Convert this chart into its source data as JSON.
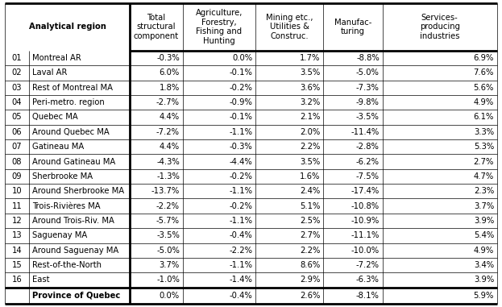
{
  "rows": [
    [
      "01",
      "Montreal AR",
      "-0.3%",
      "0.0%",
      "1.7%",
      "-8.8%",
      "6.9%"
    ],
    [
      "02",
      "Laval AR",
      "6.0%",
      "-0.1%",
      "3.5%",
      "-5.0%",
      "7.6%"
    ],
    [
      "03",
      "Rest of Montreal MA",
      "1.8%",
      "-0.2%",
      "3.6%",
      "-7.3%",
      "5.6%"
    ],
    [
      "04",
      "Peri-metro. region",
      "-2.7%",
      "-0.9%",
      "3.2%",
      "-9.8%",
      "4.9%"
    ],
    [
      "05",
      "Quebec MA",
      "4.4%",
      "-0.1%",
      "2.1%",
      "-3.5%",
      "6.1%"
    ],
    [
      "06",
      "Around Quebec MA",
      "-7.2%",
      "-1.1%",
      "2.0%",
      "-11.4%",
      "3.3%"
    ],
    [
      "07",
      "Gatineau MA",
      "4.4%",
      "-0.3%",
      "2.2%",
      "-2.8%",
      "5.3%"
    ],
    [
      "08",
      "Around Gatineau MA",
      "-4.3%",
      "-4.4%",
      "3.5%",
      "-6.2%",
      "2.7%"
    ],
    [
      "09",
      "Sherbrooke MA",
      "-1.3%",
      "-0.2%",
      "1.6%",
      "-7.5%",
      "4.7%"
    ],
    [
      "10",
      "Around Sherbrooke MA",
      "-13.7%",
      "-1.1%",
      "2.4%",
      "-17.4%",
      "2.3%"
    ],
    [
      "11",
      "Trois-Rivières MA",
      "-2.2%",
      "-0.2%",
      "5.1%",
      "-10.8%",
      "3.7%"
    ],
    [
      "12",
      "Around Trois-Riv. MA",
      "-5.7%",
      "-1.1%",
      "2.5%",
      "-10.9%",
      "3.9%"
    ],
    [
      "13",
      "Saguenay MA",
      "-3.5%",
      "-0.4%",
      "2.7%",
      "-11.1%",
      "5.4%"
    ],
    [
      "14",
      "Around Saguenay MA",
      "-5.0%",
      "-2.2%",
      "2.2%",
      "-10.0%",
      "4.9%"
    ],
    [
      "15",
      "Rest-of-the-North",
      "3.7%",
      "-1.1%",
      "8.6%",
      "-7.2%",
      "3.4%"
    ],
    [
      "16",
      "East",
      "-1.0%",
      "-1.4%",
      "2.9%",
      "-6.3%",
      "3.9%"
    ]
  ],
  "footer_row": [
    "",
    "Province of Quebec",
    "0.0%",
    "-0.4%",
    "2.6%",
    "-8.1%",
    "5.9%"
  ],
  "col_headers_line1": [
    "Analytical region",
    "Total",
    "Agriculture,",
    "Mining etc.,",
    "Manufac-",
    "Services-"
  ],
  "col_headers_line2": [
    "",
    "structural",
    "Forestry,",
    "Utilities &",
    "turing",
    "producing"
  ],
  "col_headers_line3": [
    "",
    "component",
    "Fishing and",
    "Construc.",
    "",
    "industries"
  ],
  "col_headers_line4": [
    "",
    "",
    "Hunting",
    "",
    "",
    ""
  ],
  "bg_color": "#ffffff",
  "text_color": "#000000",
  "font_size": 7.2,
  "header_font_size": 7.2,
  "thick_lw": 2.0,
  "thin_lw": 0.5
}
